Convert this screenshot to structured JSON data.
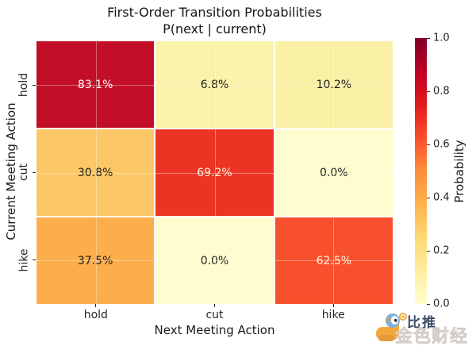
{
  "title": {
    "line1": "First-Order Transition Probabilities",
    "line2": "P(next | current)"
  },
  "axes": {
    "xlabel": "Next Meeting Action",
    "ylabel": "Current Meeting Action"
  },
  "chart_data": {
    "type": "heatmap",
    "title": "First-Order Transition Probabilities P(next | current)",
    "xlabel": "Next Meeting Action",
    "ylabel": "Current Meeting Action",
    "x_categories": [
      "hold",
      "cut",
      "hike"
    ],
    "y_categories": [
      "hold",
      "cut",
      "hike"
    ],
    "values_percent": [
      [
        83.1,
        6.8,
        10.2
      ],
      [
        30.8,
        69.2,
        0.0
      ],
      [
        37.5,
        0.0,
        62.5
      ]
    ],
    "colormap": "YlOrRd",
    "value_range": [
      0,
      1
    ],
    "grid": true,
    "legend_position": "right-colorbar",
    "rows": [
      {
        "y": "hold",
        "cells": [
          {
            "label": "83.1%",
            "bg": "#c20e27",
            "fg": "#ffffff"
          },
          {
            "label": "6.8%",
            "bg": "#fbf2ab",
            "fg": "#1a1a1a"
          },
          {
            "label": "10.2%",
            "bg": "#faf0a5",
            "fg": "#1a1a1a"
          }
        ]
      },
      {
        "y": "cut",
        "cells": [
          {
            "label": "30.8%",
            "bg": "#fcc766",
            "fg": "#1a1a1a"
          },
          {
            "label": "69.2%",
            "bg": "#ec3424",
            "fg": "#fff6e0"
          },
          {
            "label": "0.0%",
            "bg": "#fffdcf",
            "fg": "#1a1a1a"
          }
        ]
      },
      {
        "y": "hike",
        "cells": [
          {
            "label": "37.5%",
            "bg": "#fbae4b",
            "fg": "#1a1a1a"
          },
          {
            "label": "0.0%",
            "bg": "#fffdcf",
            "fg": "#1a1a1a"
          },
          {
            "label": "62.5%",
            "bg": "#f8502c",
            "fg": "#fff6e0"
          }
        ]
      }
    ]
  },
  "colorbar": {
    "label": "Probability",
    "ticks": [
      "1.0",
      "0.8",
      "0.6",
      "0.4",
      "0.2",
      "0.0"
    ],
    "gradient_top_to_bottom": [
      "#800026",
      "#bd0026",
      "#e31a1c",
      "#fc4e2a",
      "#fd8d3c",
      "#feb24c",
      "#fed976",
      "#ffeda0",
      "#ffffcc"
    ]
  },
  "watermark": {
    "brand": "比推",
    "overlay": "金色财经",
    "bird_body_color": "#f2a93b",
    "bird_head_color": "#7fb2d9"
  }
}
